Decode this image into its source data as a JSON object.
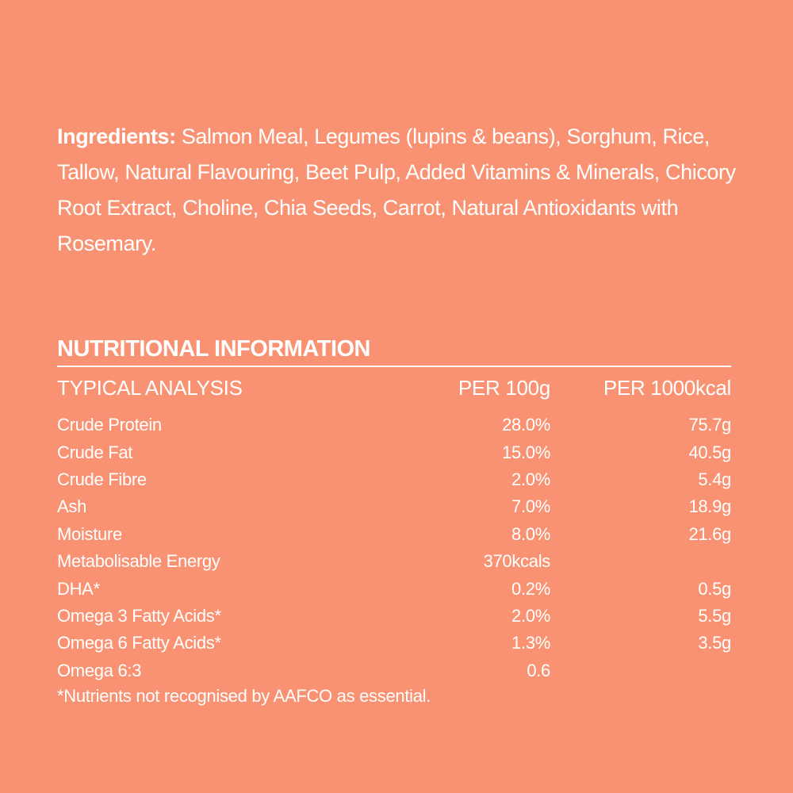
{
  "ingredients": {
    "label": "Ingredients:",
    "text": "Salmon Meal, Legumes (lupins & beans), Sorghum, Rice, Tallow, Natural Flavouring, Beet Pulp, Added Vitamins & Minerals, Chicory Root Extract, Choline, Chia Seeds, Carrot, Natural Antioxidants with Rosemary."
  },
  "nutrition": {
    "title": "NUTRITIONAL INFORMATION",
    "headers": [
      "TYPICAL ANALYSIS",
      "PER 100g",
      "PER 1000kcal"
    ],
    "rows": [
      [
        "Crude Protein",
        "28.0%",
        "75.7g"
      ],
      [
        "Crude Fat",
        "15.0%",
        "40.5g"
      ],
      [
        "Crude Fibre",
        "2.0%",
        "5.4g"
      ],
      [
        "Ash",
        "7.0%",
        "18.9g"
      ],
      [
        "Moisture",
        "8.0%",
        "21.6g"
      ],
      [
        "Metabolisable Energy",
        "370kcals"
      ],
      [
        "DHA*",
        "0.2%",
        "0.5g"
      ],
      [
        "Omega 3 Fatty Acids*",
        "2.0%",
        "5.5g"
      ],
      [
        "Omega 6 Fatty Acids*",
        "1.3%",
        "3.5g"
      ],
      [
        "Omega 6:3",
        "0.6"
      ]
    ],
    "footnote": "*Nutrients not recognised by AAFCO as essential."
  }
}
